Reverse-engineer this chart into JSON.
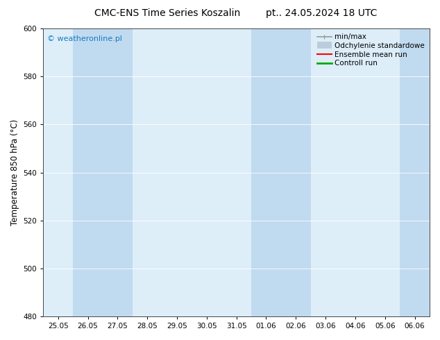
{
  "title_left": "CMC-ENS Time Series Koszalin",
  "title_right": "pt.. 24.05.2024 18 UTC",
  "ylabel": "Temperature 850 hPa (°C)",
  "ylim": [
    480,
    600
  ],
  "yticks": [
    480,
    500,
    520,
    540,
    560,
    580,
    600
  ],
  "x_labels": [
    "25.05",
    "26.05",
    "27.05",
    "28.05",
    "29.05",
    "30.05",
    "31.05",
    "01.06",
    "02.06",
    "03.06",
    "04.06",
    "05.06",
    "06.06"
  ],
  "plot_bg_color": "#ddeef9",
  "band_color": "#c0daf0",
  "background_color": "#ffffff",
  "watermark": "© weatheronline.pl",
  "watermark_color": "#1a7abf",
  "shaded_x_indices": [
    1,
    2,
    7,
    8,
    12
  ],
  "legend_items": [
    {
      "label": "min/max",
      "color": "#999999",
      "lw": 1.2
    },
    {
      "label": "Odchylenie standardowe",
      "color": "#bbccdd",
      "lw": 7
    },
    {
      "label": "Ensemble mean run",
      "color": "#ff0000",
      "lw": 1.5
    },
    {
      "label": "Controll run",
      "color": "#00aa00",
      "lw": 2.0
    }
  ],
  "title_fontsize": 10,
  "tick_fontsize": 7.5,
  "ylabel_fontsize": 8.5,
  "watermark_fontsize": 8,
  "legend_fontsize": 7.5
}
